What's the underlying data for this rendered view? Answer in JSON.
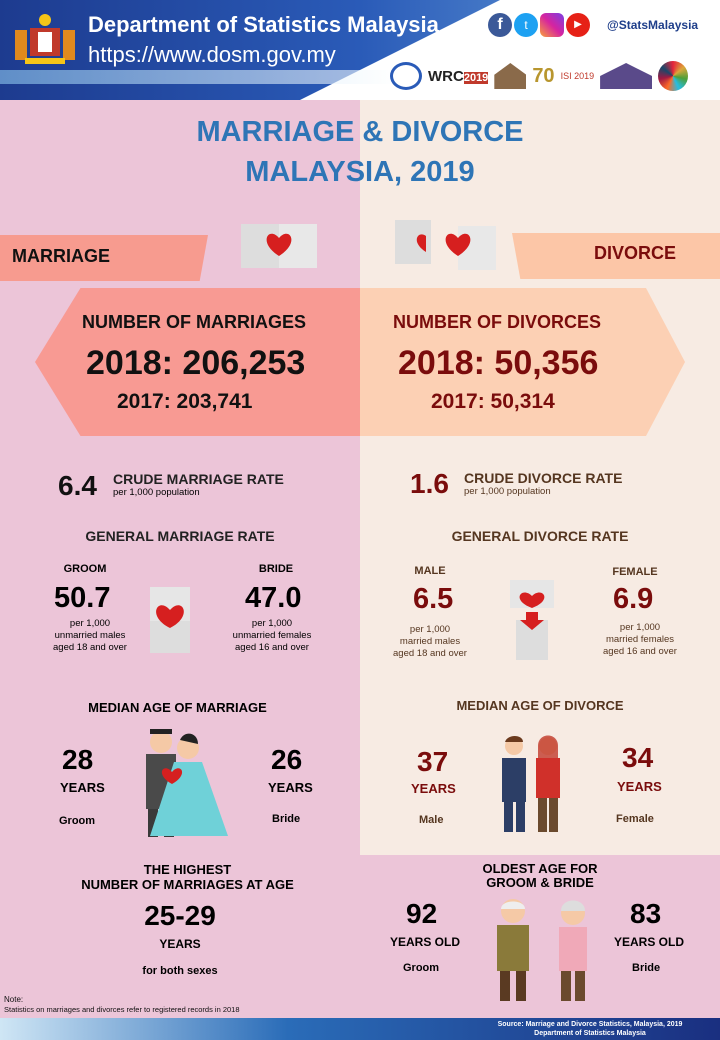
{
  "header": {
    "org": "Department of Statistics Malaysia",
    "url": "https://www.dosm.gov.my",
    "handle": "@StatsMalaysia",
    "social": [
      "facebook-icon",
      "twitter-icon",
      "instagram-icon",
      "youtube-icon"
    ],
    "logos": [
      "HARI STATISTIK NEGARA",
      "WRC 2019",
      "HIESBA 2019",
      "70",
      "ISI 2019",
      "CENSUS 2020",
      "SDG"
    ]
  },
  "title": {
    "line1": "MARRIAGE & DIVORCE",
    "line2": "MALAYSIA, 2019"
  },
  "marriage": {
    "label": "MARRIAGE",
    "count_title": "NUMBER OF MARRIAGES",
    "count_2018": "2018: 206,253",
    "count_2017": "2017: 203,741",
    "crude_value": "6.4",
    "crude_label": "CRUDE MARRIAGE RATE",
    "crude_sub": "per 1,000 population",
    "general_title": "GENERAL MARRIAGE RATE",
    "groom_label": "GROOM",
    "groom_value": "50.7",
    "groom_sub1": "per 1,000",
    "groom_sub2": "unmarried males",
    "groom_sub3": "aged 18 and over",
    "bride_label": "BRIDE",
    "bride_value": "47.0",
    "bride_sub1": "per 1,000",
    "bride_sub2": "unmarried females",
    "bride_sub3": "aged 16 and over",
    "median_title": "MEDIAN AGE OF MARRIAGE",
    "groom_age": "28",
    "bride_age": "26",
    "years": "YEARS",
    "groom": "Groom",
    "bride": "Bride",
    "highest_title1": "THE HIGHEST",
    "highest_title2": "NUMBER OF MARRIAGES AT AGE",
    "highest_value": "25-29",
    "highest_years": "YEARS",
    "highest_sub": "for both sexes"
  },
  "divorce": {
    "label": "DIVORCE",
    "count_title": "NUMBER OF DIVORCES",
    "count_2018": "2018: 50,356",
    "count_2017": "2017: 50,314",
    "crude_value": "1.6",
    "crude_label": "CRUDE DIVORCE RATE",
    "crude_sub": "per 1,000 population",
    "general_title": "GENERAL DIVORCE RATE",
    "male_label": "MALE",
    "male_value": "6.5",
    "male_sub1": "per 1,000",
    "male_sub2": "married males",
    "male_sub3": "aged 18 and over",
    "female_label": "FEMALE",
    "female_value": "6.9",
    "female_sub1": "per 1,000",
    "female_sub2": "married females",
    "female_sub3": "aged 16 and over",
    "median_title": "MEDIAN AGE OF DIVORCE",
    "male_age": "37",
    "female_age": "34",
    "years": "YEARS",
    "male": "Male",
    "female": "Female"
  },
  "oldest": {
    "title1": "OLDEST AGE FOR",
    "title2": "GROOM & BRIDE",
    "groom_age": "92",
    "bride_age": "83",
    "years_old": "YEARS OLD",
    "groom": "Groom",
    "bride": "Bride"
  },
  "note": {
    "label": "Note:",
    "text": "Statistics on marriages and divorces refer to registered records in 2018"
  },
  "footer": {
    "source": "Source: Marriage and Divorce Statistics, Malaysia, 2019",
    "org": "Department of Statistics Malaysia"
  }
}
